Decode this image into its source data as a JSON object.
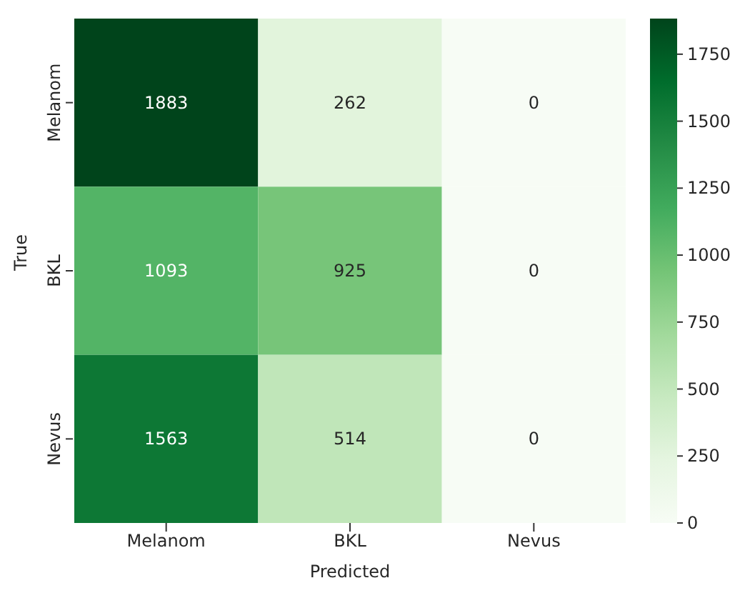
{
  "chart_data": {
    "type": "heatmap",
    "xlabel": "Predicted",
    "ylabel": "True",
    "categories": [
      "Melanom",
      "BKL",
      "Nevus"
    ],
    "y_categories": [
      "Melanom",
      "BKL",
      "Nevus"
    ],
    "cells": [
      [
        1883,
        262,
        0
      ],
      [
        1093,
        925,
        0
      ],
      [
        1563,
        514,
        0
      ]
    ],
    "clim": [
      0,
      1883
    ],
    "cticks": [
      0,
      250,
      500,
      750,
      1000,
      1250,
      1500,
      1750
    ],
    "data_labels": true
  }
}
